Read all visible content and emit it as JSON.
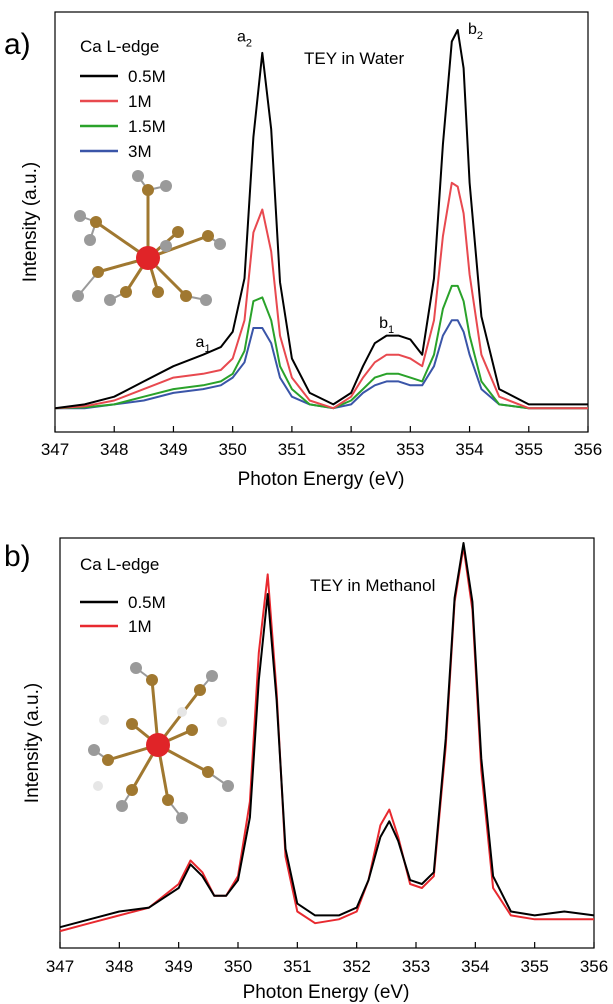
{
  "chart_data": [
    {
      "type": "line",
      "panel_label": "a)",
      "title": "TEY in Water",
      "legend_title": "Ca L-edge",
      "xlabel": "Photon Energy (eV)",
      "ylabel": "Intensity (a.u.)",
      "xlim": [
        347,
        356
      ],
      "ylim": [
        0,
        1.0
      ],
      "x_ticks": [
        347,
        348,
        349,
        350,
        351,
        352,
        353,
        354,
        355,
        356
      ],
      "annotations": [
        {
          "base": "a",
          "sub": "1",
          "x": 349.5,
          "y": 0.17
        },
        {
          "base": "a",
          "sub": "2",
          "x": 350.2,
          "y": 0.97
        },
        {
          "base": "b",
          "sub": "1",
          "x": 352.6,
          "y": 0.22
        },
        {
          "base": "b",
          "sub": "2",
          "x": 354.1,
          "y": 0.99
        }
      ],
      "series": [
        {
          "name": "0.5M",
          "color": "#000000",
          "x": [
            347.0,
            347.5,
            348.0,
            348.5,
            349.0,
            349.5,
            349.8,
            350.0,
            350.2,
            350.35,
            350.5,
            350.65,
            350.8,
            351.0,
            351.3,
            351.7,
            352.0,
            352.2,
            352.4,
            352.6,
            352.8,
            353.0,
            353.2,
            353.4,
            353.55,
            353.7,
            353.8,
            353.9,
            354.0,
            354.2,
            354.5,
            355.0,
            355.5,
            356.0
          ],
          "y": [
            0.01,
            0.02,
            0.04,
            0.08,
            0.12,
            0.15,
            0.17,
            0.21,
            0.35,
            0.72,
            0.94,
            0.74,
            0.34,
            0.14,
            0.05,
            0.02,
            0.05,
            0.12,
            0.18,
            0.2,
            0.2,
            0.19,
            0.15,
            0.35,
            0.7,
            0.97,
            1.0,
            0.9,
            0.6,
            0.25,
            0.06,
            0.02,
            0.02,
            0.02
          ]
        },
        {
          "name": "1M",
          "color": "#e8494f",
          "x": [
            347.0,
            347.5,
            348.0,
            348.5,
            349.0,
            349.5,
            349.8,
            350.0,
            350.2,
            350.35,
            350.5,
            350.65,
            350.8,
            351.0,
            351.3,
            351.7,
            352.0,
            352.2,
            352.4,
            352.6,
            352.8,
            353.0,
            353.2,
            353.4,
            353.55,
            353.7,
            353.8,
            353.9,
            354.0,
            354.2,
            354.5,
            355.0,
            355.5,
            356.0
          ],
          "y": [
            0.01,
            0.015,
            0.03,
            0.06,
            0.09,
            0.1,
            0.11,
            0.14,
            0.24,
            0.47,
            0.53,
            0.42,
            0.2,
            0.09,
            0.03,
            0.01,
            0.04,
            0.09,
            0.13,
            0.15,
            0.15,
            0.14,
            0.12,
            0.24,
            0.46,
            0.6,
            0.59,
            0.52,
            0.36,
            0.15,
            0.04,
            0.01,
            0.01,
            0.01
          ]
        },
        {
          "name": "1.5M",
          "color": "#2aa22a",
          "x": [
            347.0,
            347.5,
            348.0,
            348.5,
            349.0,
            349.5,
            349.8,
            350.0,
            350.2,
            350.35,
            350.5,
            350.65,
            350.8,
            351.0,
            351.3,
            351.7,
            352.0,
            352.2,
            352.4,
            352.6,
            352.8,
            353.0,
            353.2,
            353.4,
            353.55,
            353.7,
            353.8,
            353.9,
            354.0,
            354.2,
            354.5,
            355.0,
            355.5,
            356.0
          ],
          "y": [
            0.01,
            0.012,
            0.02,
            0.04,
            0.06,
            0.07,
            0.08,
            0.1,
            0.16,
            0.29,
            0.3,
            0.24,
            0.12,
            0.06,
            0.02,
            0.01,
            0.03,
            0.06,
            0.09,
            0.1,
            0.1,
            0.09,
            0.08,
            0.15,
            0.27,
            0.33,
            0.33,
            0.29,
            0.2,
            0.08,
            0.02,
            0.01,
            0.01,
            0.01
          ]
        },
        {
          "name": "3M",
          "color": "#3a55a8",
          "x": [
            347.0,
            347.5,
            348.0,
            348.5,
            349.0,
            349.5,
            349.8,
            350.0,
            350.2,
            350.35,
            350.5,
            350.65,
            350.8,
            351.0,
            351.3,
            351.7,
            352.0,
            352.2,
            352.4,
            352.6,
            352.8,
            353.0,
            353.2,
            353.4,
            353.55,
            353.7,
            353.8,
            353.9,
            354.0,
            354.2,
            354.5,
            355.0,
            355.5,
            356.0
          ],
          "y": [
            0.01,
            0.01,
            0.02,
            0.03,
            0.05,
            0.06,
            0.07,
            0.09,
            0.13,
            0.22,
            0.22,
            0.18,
            0.09,
            0.04,
            0.02,
            0.01,
            0.02,
            0.05,
            0.07,
            0.08,
            0.08,
            0.07,
            0.07,
            0.12,
            0.2,
            0.24,
            0.24,
            0.21,
            0.15,
            0.06,
            0.02,
            0.01,
            0.01,
            0.01
          ]
        }
      ]
    },
    {
      "type": "line",
      "panel_label": "b)",
      "title": "TEY in Methanol",
      "legend_title": "Ca L-edge",
      "xlabel": "Photon Energy (eV)",
      "ylabel": "Intensity (a.u.)",
      "xlim": [
        347,
        356
      ],
      "ylim": [
        0,
        1.0
      ],
      "x_ticks": [
        347,
        348,
        349,
        350,
        351,
        352,
        353,
        354,
        355,
        356
      ],
      "series": [
        {
          "name": "0.5M",
          "color": "#000000",
          "x": [
            347.0,
            347.5,
            348.0,
            348.5,
            349.0,
            349.2,
            349.4,
            349.6,
            349.8,
            350.0,
            350.2,
            350.35,
            350.5,
            350.65,
            350.8,
            351.0,
            351.3,
            351.7,
            352.0,
            352.2,
            352.4,
            352.55,
            352.7,
            352.9,
            353.1,
            353.3,
            353.5,
            353.65,
            353.8,
            353.95,
            354.1,
            354.3,
            354.6,
            355.0,
            355.5,
            356.0
          ],
          "y": [
            0.02,
            0.04,
            0.06,
            0.07,
            0.12,
            0.18,
            0.15,
            0.1,
            0.1,
            0.14,
            0.3,
            0.65,
            0.87,
            0.6,
            0.22,
            0.08,
            0.05,
            0.05,
            0.07,
            0.14,
            0.25,
            0.29,
            0.24,
            0.14,
            0.13,
            0.16,
            0.5,
            0.86,
            1.0,
            0.85,
            0.45,
            0.15,
            0.06,
            0.05,
            0.06,
            0.05
          ]
        },
        {
          "name": "1M",
          "color": "#e8292f",
          "x": [
            347.0,
            347.5,
            348.0,
            348.5,
            349.0,
            349.2,
            349.4,
            349.6,
            349.8,
            350.0,
            350.2,
            350.35,
            350.5,
            350.65,
            350.8,
            351.0,
            351.3,
            351.7,
            352.0,
            352.2,
            352.4,
            352.55,
            352.7,
            352.9,
            353.1,
            353.3,
            353.5,
            353.65,
            353.8,
            353.95,
            354.1,
            354.3,
            354.6,
            355.0,
            355.5,
            356.0
          ],
          "y": [
            0.01,
            0.03,
            0.05,
            0.07,
            0.13,
            0.19,
            0.16,
            0.1,
            0.1,
            0.15,
            0.34,
            0.72,
            0.92,
            0.62,
            0.2,
            0.06,
            0.03,
            0.04,
            0.06,
            0.14,
            0.28,
            0.32,
            0.25,
            0.13,
            0.12,
            0.15,
            0.48,
            0.85,
            0.99,
            0.83,
            0.42,
            0.12,
            0.05,
            0.04,
            0.04,
            0.04
          ]
        }
      ]
    }
  ]
}
